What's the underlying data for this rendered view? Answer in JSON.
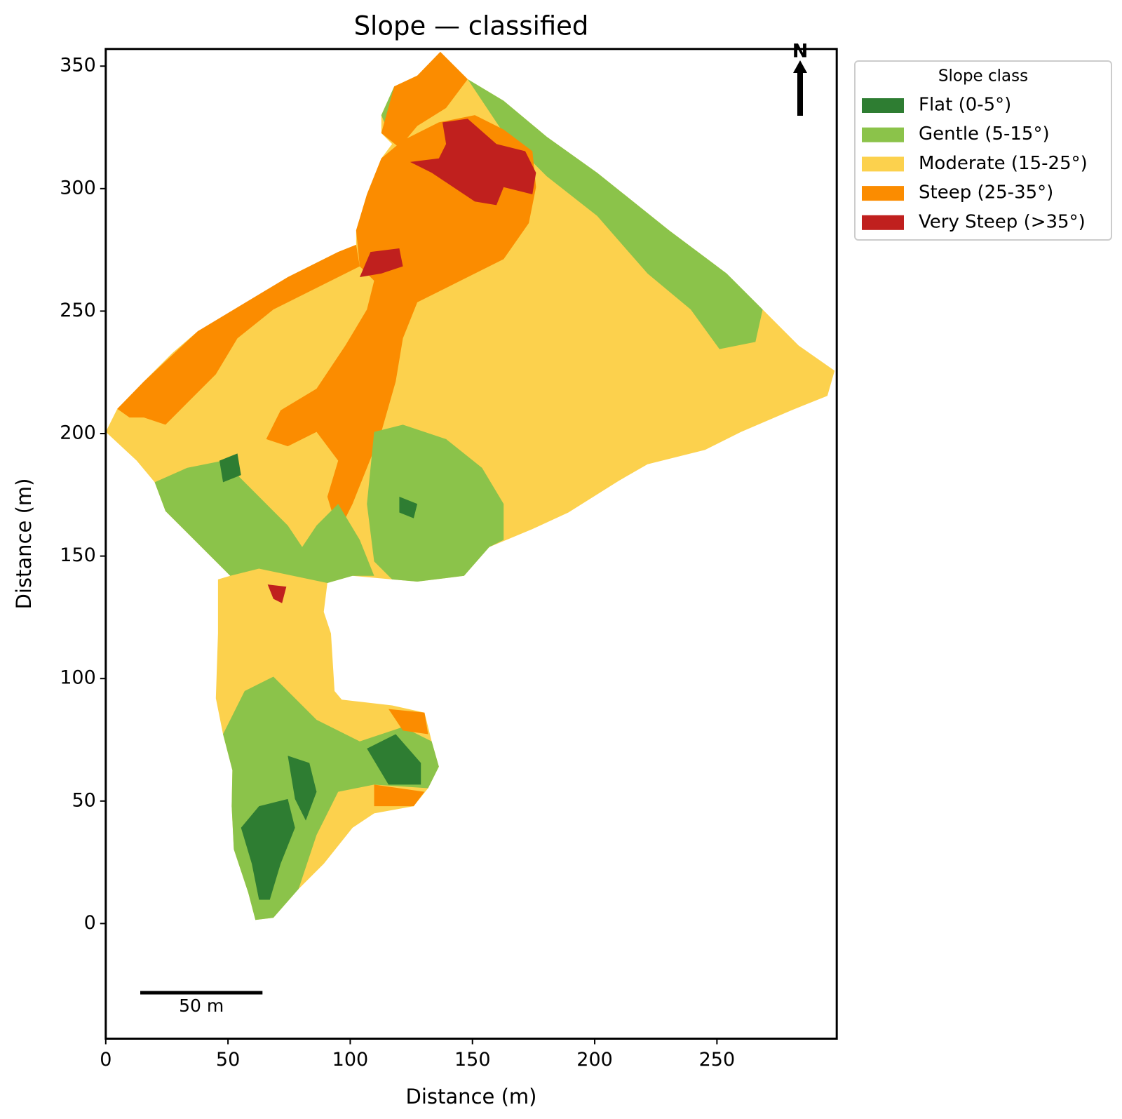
{
  "chart_data": {
    "type": "map",
    "title": "Slope — classified",
    "xlabel": "Distance (m)",
    "ylabel": "Distance (m)",
    "xlim": [
      0,
      299
    ],
    "ylim": [
      -47,
      357
    ],
    "xticks": [
      0,
      50,
      100,
      150,
      200,
      250
    ],
    "yticks": [
      0,
      50,
      100,
      150,
      200,
      250,
      300,
      350
    ],
    "legend_title": "Slope class",
    "legend": "outside right",
    "series": [
      {
        "name": "Flat (0-5°)",
        "color": "#2e7d32"
      },
      {
        "name": "Gentle (5-15°)",
        "color": "#8bc34a"
      },
      {
        "name": "Moderate (15-25°)",
        "color": "#fcd14d"
      },
      {
        "name": "Steep (25-35°)",
        "color": "#fb8c00"
      },
      {
        "name": "Very Steep (>35°)",
        "color": "#c0201e"
      }
    ],
    "north_label": "N",
    "scale_bar": {
      "length": 50,
      "label": "50 m"
    }
  }
}
